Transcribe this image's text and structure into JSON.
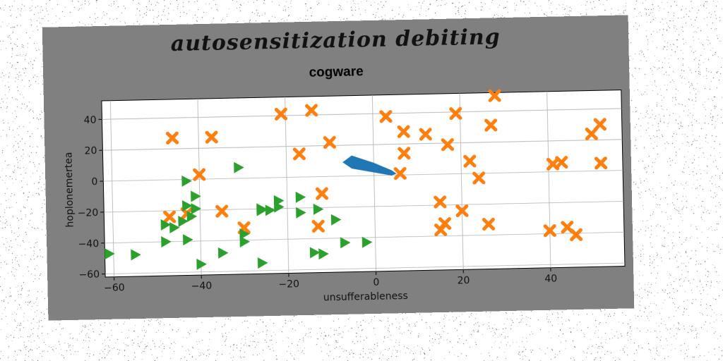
{
  "chart_data": {
    "type": "scatter",
    "suptitle": "autosensitization debiting",
    "title": "cogware",
    "xlabel": "unsufferableness",
    "ylabel": "hoplonemertea",
    "xlim": [
      -62,
      57
    ],
    "ylim": [
      -62,
      52
    ],
    "xticks": [
      -60,
      -40,
      -20,
      0,
      20,
      40
    ],
    "yticks": [
      -60,
      -40,
      -20,
      0,
      20,
      40
    ],
    "grid": true,
    "colors": {
      "figure_bg": "#808080",
      "axes_bg": "#ffffff",
      "orange": "#ff7f0e",
      "green": "#2ca02c",
      "blue": "#1f77b4"
    },
    "series": [
      {
        "marker": "x",
        "color": "#ff7f0e",
        "points": [
          [
            -46,
            27
          ],
          [
            -37,
            27
          ],
          [
            -40,
            3
          ],
          [
            -21,
            41
          ],
          [
            -14,
            43
          ],
          [
            -17,
            15
          ],
          [
            -10,
            22
          ],
          [
            3,
            38
          ],
          [
            7,
            28
          ],
          [
            7,
            14
          ],
          [
            6,
            1
          ],
          [
            12,
            26
          ],
          [
            19,
            39
          ],
          [
            17,
            19
          ],
          [
            28,
            50
          ],
          [
            27,
            31
          ],
          [
            22,
            8
          ],
          [
            24,
            -3
          ],
          [
            -12,
            -11
          ],
          [
            -35,
            -21
          ],
          [
            -47,
            -24
          ],
          [
            -43,
            -22
          ],
          [
            -30,
            -32
          ],
          [
            -13,
            -32
          ],
          [
            15,
            -18
          ],
          [
            16,
            -32
          ],
          [
            15,
            -36
          ],
          [
            20,
            -24
          ],
          [
            26,
            -33
          ],
          [
            41,
            5
          ],
          [
            43,
            6
          ],
          [
            50,
            24
          ],
          [
            52,
            30
          ],
          [
            52,
            5
          ],
          [
            40,
            -38
          ],
          [
            44,
            -36
          ],
          [
            46,
            -41
          ]
        ]
      },
      {
        "marker": ">",
        "color": "#2ca02c",
        "points": [
          [
            -43,
            -1
          ],
          [
            -41,
            -11
          ],
          [
            -43,
            -17
          ],
          [
            -41,
            -19
          ],
          [
            -42,
            -24
          ],
          [
            -48,
            -29
          ],
          [
            -46,
            -31
          ],
          [
            -48,
            -40
          ],
          [
            -43,
            -39
          ],
          [
            -30,
            -41
          ],
          [
            -35,
            -48
          ],
          [
            -40,
            -55
          ],
          [
            -26,
            -55
          ],
          [
            -61,
            -47
          ],
          [
            -55,
            -48
          ],
          [
            -31,
            7
          ],
          [
            -26,
            -21
          ],
          [
            -24,
            -21
          ],
          [
            -22,
            -15
          ],
          [
            -17,
            -13
          ],
          [
            -17,
            -23
          ],
          [
            -13,
            -21
          ],
          [
            -9,
            -28
          ],
          [
            -7,
            -43
          ],
          [
            -2,
            -43
          ],
          [
            -14,
            -49
          ],
          [
            -12,
            -50
          ],
          [
            -26,
            -20
          ],
          [
            -22,
            -19
          ],
          [
            -30,
            -36
          ],
          [
            -44,
            -27
          ]
        ]
      },
      {
        "marker": "polygon",
        "color": "#1f77b4",
        "points": [
          [
            -5,
            13
          ],
          [
            -7,
            9
          ],
          [
            -5,
            5
          ],
          [
            4,
            0
          ],
          [
            5,
            1
          ],
          [
            4,
            3
          ],
          [
            0,
            8
          ]
        ]
      }
    ]
  }
}
